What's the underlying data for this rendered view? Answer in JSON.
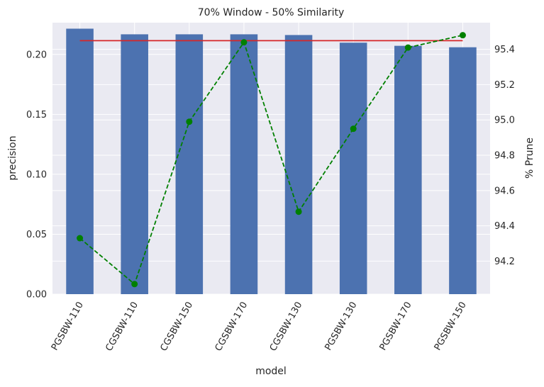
{
  "chart_data": {
    "type": "bar",
    "title": "70% Window - 50% Similarity",
    "xlabel": "model",
    "ylabel": "precision",
    "y2label": "% Prune",
    "categories": [
      "PGSBW-110",
      "CGSBW-110",
      "CGSBW-150",
      "CGSBW-170",
      "CGSBW-130",
      "PGSBW-130",
      "PGSBW-170",
      "PGSBW-150"
    ],
    "ylim": [
      0,
      0.2265
    ],
    "yticks": [
      0.0,
      0.05,
      0.1,
      0.15,
      0.2
    ],
    "yticklabels": [
      "0.00",
      "0.05",
      "0.10",
      "0.15",
      "0.20"
    ],
    "y2lim": [
      94.013,
      95.551
    ],
    "y2ticks": [
      94.2,
      94.4,
      94.6,
      94.8,
      95.0,
      95.2,
      95.4
    ],
    "y2ticklabels": [
      "94.2",
      "94.4",
      "94.6",
      "94.8",
      "95.0",
      "95.2",
      "95.4"
    ],
    "grid": true,
    "series": [
      {
        "kind": "bar",
        "axis": "left",
        "color": "#4c72b0",
        "values": [
          0.2215,
          0.2168,
          0.2168,
          0.2168,
          0.2162,
          0.2098,
          0.2072,
          0.206
        ]
      },
      {
        "kind": "line",
        "axis": "left",
        "color": "#d62728",
        "values": [
          0.2115,
          0.2115,
          0.2115,
          0.2115,
          0.2115,
          0.2115,
          0.2115,
          0.2115
        ]
      },
      {
        "kind": "line",
        "axis": "right",
        "style": "dashed",
        "marker": "circle",
        "color": "#008000",
        "values": [
          94.33,
          94.07,
          94.99,
          95.44,
          94.48,
          94.95,
          95.41,
          95.48
        ]
      }
    ],
    "background": "#eaeaf2",
    "gridcolor": "#ffffff"
  }
}
